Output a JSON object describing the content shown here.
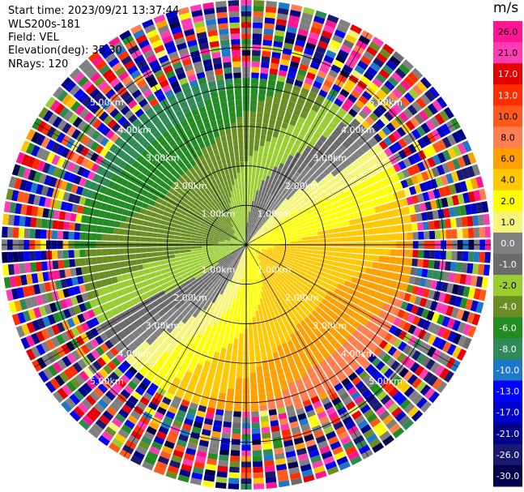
{
  "info": {
    "start_time": "Start time: 2023/09/21 13:37:44",
    "instrument": "WLS200s-181",
    "field": "Field: VEL",
    "elevation": "Elevation(deg): 35.30",
    "nrays": "NRays: 120"
  },
  "chart_data": {
    "type": "heatmap",
    "projection": "polar-ppi",
    "field": "VEL",
    "unit": "m/s",
    "n_rays": 120,
    "range_ring_labels_km": [
      "1.00km",
      "2.00km",
      "3.00km",
      "4.00km",
      "5.00km"
    ],
    "range_rings_km": [
      1,
      2,
      3,
      4,
      5
    ],
    "max_range_km": 6.2,
    "colorbar": {
      "orientation": "vertical",
      "placement": "right",
      "tick_labels": [
        "26.0",
        "21.0",
        "17.0",
        "13.0",
        "10.0",
        "8.0",
        "6.0",
        "4.0",
        "2.0",
        "1.0",
        "0.0",
        "-1.0",
        "-2.0",
        "-4.0",
        "-6.0",
        "-8.0",
        "-10.0",
        "-13.0",
        "-17.0",
        "-21.0",
        "-26.0",
        "-30.0"
      ],
      "colors": [
        "#ff1493",
        "#ff3cb4",
        "#e60000",
        "#ff2d00",
        "#ff5a1e",
        "#ff7f50",
        "#ffa000",
        "#ffc800",
        "#ffff00",
        "#f5f57a",
        "#808080",
        "#6b6b6b",
        "#9acd32",
        "#6b8e23",
        "#228b22",
        "#2e8b57",
        "#1e78c8",
        "#0000ff",
        "#0000cd",
        "#00008b",
        "#191970",
        "#00004c"
      ]
    },
    "wind_pattern": {
      "description_free": false,
      "inbound_sector_deg": 315,
      "outbound_sector_deg": 135
    }
  }
}
